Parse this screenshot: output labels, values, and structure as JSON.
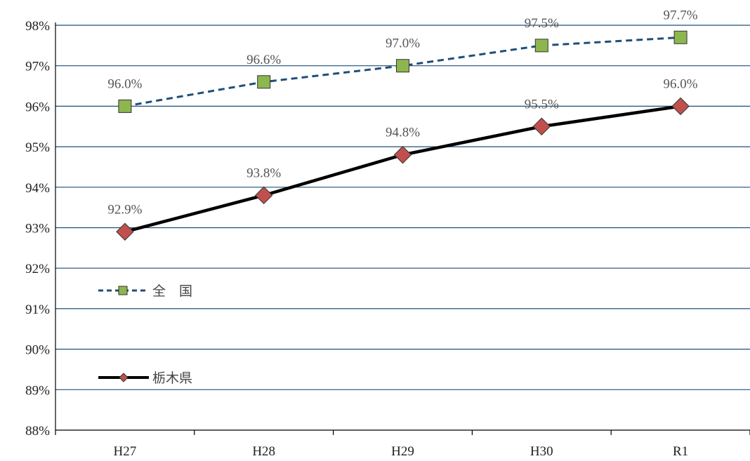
{
  "chart_data": {
    "type": "line",
    "categories": [
      "H27",
      "H28",
      "H29",
      "H30",
      "R1"
    ],
    "ylim": [
      88,
      98
    ],
    "yticks": [
      "88%",
      "89%",
      "90%",
      "91%",
      "92%",
      "93%",
      "94%",
      "95%",
      "96%",
      "97%",
      "98%"
    ],
    "grid": true,
    "legend_position": "left",
    "series": [
      {
        "name": "全　国",
        "values": [
          96.0,
          96.6,
          97.0,
          97.5,
          97.7
        ],
        "labels": [
          "96.0%",
          "96.6%",
          "97.0%",
          "97.5%",
          "97.7%"
        ],
        "line_color": "#1f4e79",
        "line_style": "dashed",
        "marker": "square",
        "marker_color": "#8db64f"
      },
      {
        "name": "栃木県",
        "values": [
          92.9,
          93.8,
          94.8,
          95.5,
          96.0
        ],
        "labels": [
          "92.9%",
          "93.8%",
          "94.8%",
          "95.5%",
          "96.0%"
        ],
        "line_color": "#000000",
        "line_style": "solid",
        "marker": "diamond",
        "marker_color": "#c0504d"
      }
    ]
  }
}
